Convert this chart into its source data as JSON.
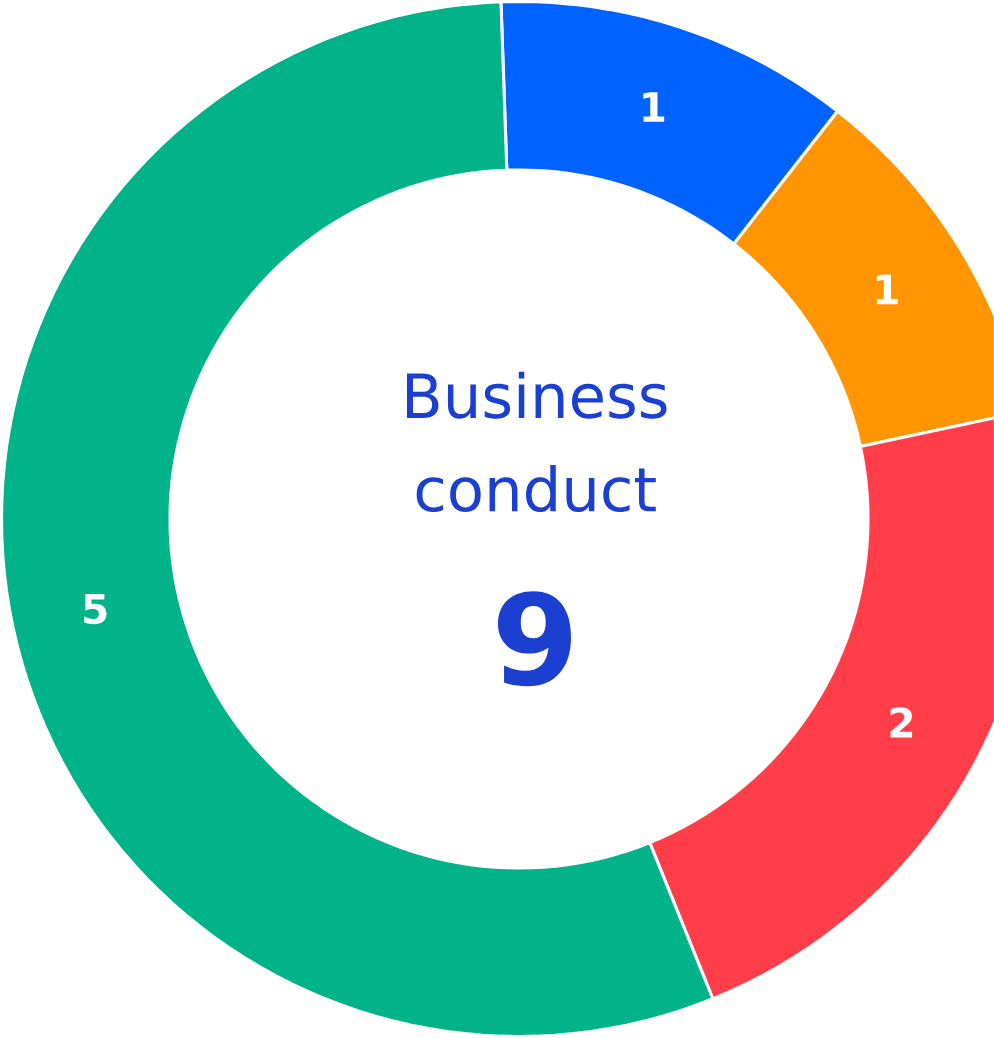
{
  "chart_data": {
    "type": "donut",
    "title": "Business conduct",
    "categories": [
      null,
      null,
      null,
      null
    ],
    "values": [
      1,
      1,
      2,
      5
    ],
    "colors": [
      "#0062ff",
      "#ff9500",
      "#ff3e4a",
      "#00b389"
    ],
    "data_labels": true,
    "annotations": [
      "9"
    ]
  }
}
